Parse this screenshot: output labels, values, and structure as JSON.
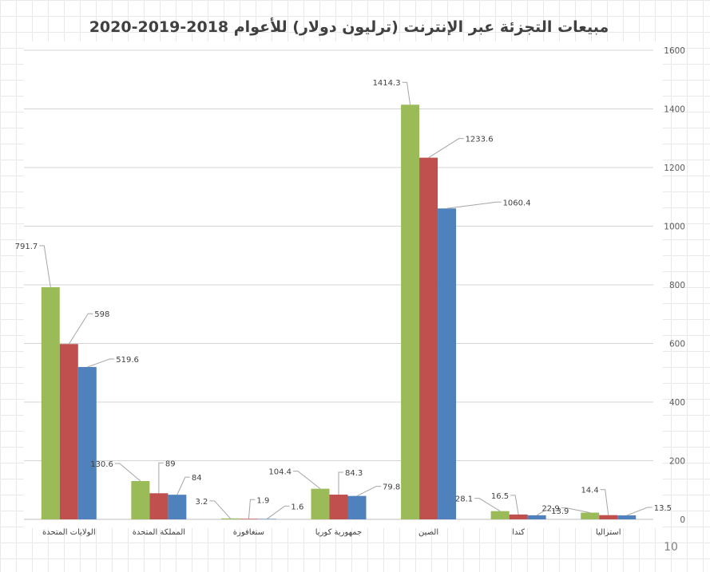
{
  "page_number": "10",
  "chart_data": {
    "type": "bar",
    "title": "مبيعات التجزئة عبر الإنترنت (ترليون دولار) للأعوام 2018-2019-2020",
    "categories": [
      "الولايات المتحدة",
      "المملكة المتحدة",
      "سنغافورة",
      "جمهورية كوريا",
      "الصين",
      "كندا",
      "استراليا"
    ],
    "series": [
      {
        "values": [
          791.7,
          130.6,
          3.2,
          104.4,
          1414.3,
          28.1,
          22.9
        ],
        "color": "#9bbb59"
      },
      {
        "values": [
          598,
          89,
          1.9,
          84.3,
          1233.6,
          16.5,
          14.4
        ],
        "color": "#c0504d"
      },
      {
        "values": [
          519.6,
          84,
          1.6,
          79.8,
          1060.4,
          13.9,
          13.5
        ],
        "color": "#4f81bd"
      }
    ],
    "ylim": [
      0,
      1600
    ],
    "yticks": [
      0,
      200,
      400,
      600,
      800,
      1000,
      1200,
      1400,
      1600
    ],
    "y_axis_side": "right",
    "grid": true,
    "legend": "none",
    "data_labels": true
  }
}
